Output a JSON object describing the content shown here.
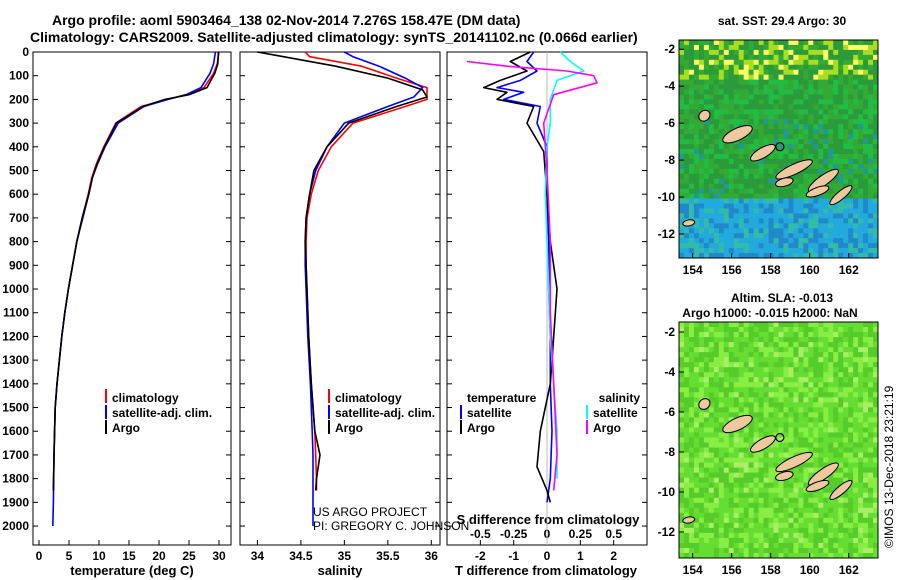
{
  "header": {
    "line1": "Argo profile: aoml 5903464_138 02-Nov-2014 7.276S 158.47E (DM data)",
    "line2": "Climatology: CARS2009. Satellite-adjusted climatology: synTS_20141102.nc (0.066d earlier)"
  },
  "colors": {
    "climatology": "#ff0000",
    "satellite": "#0000ff",
    "argo": "#000000",
    "satellite_s": "#00ffff",
    "argo_s": "#ff00ff"
  },
  "chart_data": [
    {
      "type": "line",
      "id": "temperature",
      "xlabel": "temperature (deg C)",
      "xlim": [
        -1,
        32
      ],
      "ylim": [
        0,
        2080
      ],
      "xticks": [
        0,
        5,
        10,
        15,
        20,
        25,
        30
      ],
      "yticks": [
        0,
        100,
        200,
        300,
        400,
        500,
        600,
        700,
        800,
        900,
        1000,
        1100,
        1200,
        1300,
        1400,
        1500,
        1600,
        1700,
        1800,
        1900,
        2000
      ],
      "legend": [
        "climatology",
        "satellite-adj. clim.",
        "Argo"
      ],
      "series": [
        {
          "name": "climatology",
          "color": "#ff0000",
          "x": [
            30,
            29.7,
            29.1,
            27.5,
            24.5,
            21.5,
            17,
            12.8,
            10.8,
            9.6,
            8.8,
            8.2,
            7.2,
            6.3,
            5.6,
            4.9,
            4.3,
            3.8,
            3.4,
            3.0,
            2.7,
            2.5,
            2.4
          ],
          "y": [
            0,
            50,
            90,
            150,
            180,
            200,
            230,
            300,
            400,
            470,
            530,
            600,
            700,
            800,
            900,
            1000,
            1100,
            1200,
            1300,
            1400,
            1500,
            1700,
            1850
          ]
        },
        {
          "name": "satellite",
          "color": "#0000ff",
          "x": [
            29.4,
            29.1,
            28.5,
            27,
            24.5,
            21.5,
            17.5,
            13.2,
            11,
            9.8,
            8.9,
            8.3,
            7.3,
            6.3,
            5.6,
            4.9,
            4.3,
            3.8,
            3.4,
            3.0,
            2.7,
            2.5,
            2.4,
            2.3
          ],
          "y": [
            0,
            50,
            90,
            150,
            180,
            200,
            230,
            300,
            400,
            470,
            530,
            600,
            700,
            800,
            900,
            1000,
            1100,
            1200,
            1300,
            1400,
            1500,
            1700,
            1900,
            2000
          ]
        },
        {
          "name": "Argo",
          "color": "#000000",
          "x": [
            29.9,
            29.8,
            29.3,
            28,
            25,
            21,
            17.3,
            12.9,
            10.9,
            9.7,
            8.9,
            8.3,
            7.2,
            6.3,
            5.6,
            4.9,
            4.3,
            3.8,
            3.4,
            3.0,
            2.7,
            2.5,
            2.4
          ],
          "y": [
            0,
            50,
            90,
            150,
            180,
            200,
            230,
            300,
            400,
            470,
            530,
            600,
            700,
            800,
            900,
            1000,
            1100,
            1200,
            1300,
            1400,
            1500,
            1700,
            1850
          ]
        }
      ]
    },
    {
      "type": "line",
      "id": "salinity",
      "xlabel": "salinity",
      "xlim": [
        33.8,
        36.1
      ],
      "ylim": [
        0,
        2080
      ],
      "xticks": [
        34,
        34.5,
        35,
        35.5,
        36
      ],
      "legend": [
        "climatology",
        "satellite-adj. clim.",
        "Argo"
      ],
      "annotation": [
        "US ARGO PROJECT",
        "PI: GREGORY C. JOHNSON"
      ],
      "series": [
        {
          "name": "climatology",
          "color": "#ff0000",
          "x": [
            34.55,
            34.6,
            35.2,
            35.6,
            35.95,
            35.95,
            35.7,
            35.1,
            34.85,
            34.7,
            34.62,
            34.57,
            34.56,
            34.56,
            34.57,
            34.59,
            34.62,
            34.66,
            34.67,
            34.68,
            34.68
          ],
          "y": [
            0,
            20,
            60,
            110,
            150,
            200,
            230,
            300,
            400,
            500,
            600,
            700,
            800,
            900,
            1000,
            1200,
            1400,
            1600,
            1700,
            1800,
            1850
          ]
        },
        {
          "name": "satellite",
          "color": "#0000ff",
          "x": [
            35.0,
            35.1,
            35.4,
            35.7,
            35.9,
            35.8,
            35.5,
            35.0,
            34.8,
            34.67,
            34.6,
            34.56,
            34.55,
            34.55,
            34.56,
            34.58,
            34.61,
            34.63,
            34.64,
            34.64,
            34.64
          ],
          "y": [
            0,
            20,
            60,
            110,
            150,
            190,
            230,
            300,
            400,
            500,
            600,
            700,
            800,
            900,
            1000,
            1200,
            1400,
            1600,
            1700,
            1850,
            2000
          ]
        },
        {
          "name": "Argo",
          "color": "#000000",
          "x": [
            34.0,
            34.3,
            34.9,
            35.5,
            35.9,
            35.95,
            35.6,
            35.05,
            34.8,
            34.65,
            34.6,
            34.56,
            34.55,
            34.56,
            34.57,
            34.59,
            34.62,
            34.66,
            34.72,
            34.68,
            34.67
          ],
          "y": [
            0,
            20,
            60,
            110,
            160,
            190,
            230,
            300,
            400,
            500,
            600,
            700,
            800,
            900,
            1000,
            1200,
            1400,
            1600,
            1700,
            1800,
            1850
          ]
        }
      ]
    },
    {
      "type": "line",
      "id": "difference",
      "xlabel": "T difference from climatology",
      "xlabel_top": "S difference from climatology",
      "xlim": [
        -3,
        3
      ],
      "ylim": [
        0,
        2080
      ],
      "xticks": [
        -2,
        -1,
        0,
        1,
        2
      ],
      "xtick_labels_top": [
        "-0.5",
        "-0.25",
        "0",
        "0.25",
        "0.5"
      ],
      "legend_left": {
        "title": "temperature",
        "items": [
          "satellite",
          "Argo"
        ]
      },
      "legend_right": {
        "title": "salinity",
        "items": [
          "satellite",
          "Argo"
        ]
      },
      "series": [
        {
          "name": "T satellite",
          "color": "#0000ff",
          "x": [
            -0.4,
            -0.6,
            -0.3,
            -0.8,
            -1.5,
            -0.7,
            -1.3,
            -0.2,
            -0.3,
            0.0,
            0.0,
            0.05,
            0.05,
            0.1,
            0.1,
            0.15,
            0.1,
            0.0
          ],
          "y": [
            0,
            40,
            80,
            120,
            150,
            170,
            200,
            230,
            300,
            400,
            600,
            800,
            1000,
            1200,
            1400,
            1600,
            1800,
            1900
          ]
        },
        {
          "name": "T Argo",
          "color": "#000000",
          "x": [
            -0.5,
            -1.1,
            -0.6,
            -1.4,
            -1.9,
            -1.2,
            -1.5,
            -0.4,
            -0.6,
            -0.1,
            0.0,
            0.1,
            0.3,
            0.2,
            0.1,
            -0.2,
            -0.3,
            0.0,
            0.1
          ],
          "y": [
            0,
            40,
            80,
            120,
            150,
            170,
            200,
            230,
            300,
            420,
            600,
            800,
            1000,
            1200,
            1400,
            1600,
            1750,
            1850,
            1900
          ]
        },
        {
          "name": "S satellite",
          "color": "#00ffff",
          "x": [
            0.4,
            0.7,
            1.1,
            0.3,
            0.1,
            0.1,
            0.0,
            -0.05,
            0.0,
            0.05,
            0.1,
            0.2,
            0.3,
            0.3
          ],
          "y": [
            0,
            40,
            80,
            120,
            200,
            300,
            400,
            600,
            800,
            1000,
            1200,
            1400,
            1600,
            1800
          ]
        },
        {
          "name": "S Argo",
          "color": "#ff00ff",
          "x": [
            -2.4,
            -1.2,
            0.6,
            1.4,
            1.5,
            0.2,
            -0.1,
            0.0,
            0.1,
            0.1,
            0.2,
            0.3,
            0.2
          ],
          "y": [
            40,
            60,
            80,
            100,
            130,
            180,
            300,
            500,
            800,
            1100,
            1400,
            1700,
            1850
          ]
        }
      ]
    },
    {
      "type": "heatmap",
      "id": "sst_map",
      "title": "sat. SST: 29.4 Argo: 30",
      "xticks": [
        154,
        156,
        158,
        160,
        162
      ],
      "yticks": [
        -2,
        -4,
        -6,
        -8,
        -10,
        -12
      ]
    },
    {
      "type": "heatmap",
      "id": "sla_map",
      "title": "Altim. SLA: -0.013",
      "subtitle": "Argo h1000: -0.015 h2000: NaN",
      "xticks": [
        154,
        156,
        158,
        160,
        162
      ],
      "yticks": [
        -2,
        -4,
        -6,
        -8,
        -10,
        -12
      ]
    }
  ],
  "credit": "©IMOS 13-Dec-2018 23:21:19"
}
